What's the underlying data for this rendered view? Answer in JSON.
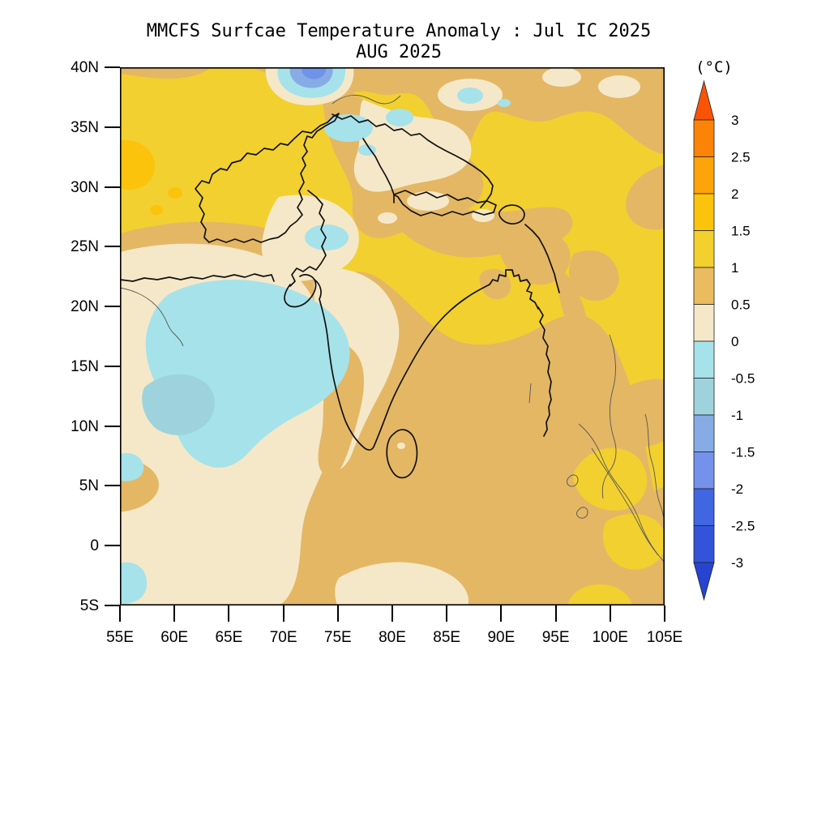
{
  "title": {
    "line1": "MMCFS Surfcae Temperature Anomaly : Jul IC 2025",
    "line2": "AUG 2025"
  },
  "axes": {
    "lat_ticks": [
      "40N",
      "35N",
      "30N",
      "25N",
      "20N",
      "15N",
      "10N",
      "5N",
      "0",
      "5S"
    ],
    "lon_ticks": [
      "55E",
      "60E",
      "65E",
      "70E",
      "75E",
      "80E",
      "85E",
      "90E",
      "95E",
      "100E",
      "105E"
    ]
  },
  "colorbar": {
    "unit_label": "(°C)",
    "levels": [
      "3",
      "2.5",
      "2",
      "1.5",
      "1",
      "0.5",
      "0",
      "-0.5",
      "-1",
      "-1.5",
      "-2",
      "-2.5",
      "-3"
    ],
    "segment_colors_top_to_bottom": [
      "#fb8406",
      "#fda40a",
      "#fcc30d",
      "#f2d02e",
      "#e8bc5f",
      "#f5e8c8",
      "#a6e2ea",
      "#9ed3dd",
      "#87ace5",
      "#7491eb",
      "#4166e2",
      "#3354da"
    ],
    "above_max_color": "#f85406",
    "below_min_color": "#2644d0"
  },
  "map_colors": {
    "band_1_to_1p5": "#f2d030",
    "band_0p5_to_1": "#e4b765",
    "band_0_to_0p5": "#f5e8c8",
    "band_m0p5_to_0": "#a6e2ea",
    "band_m1_to_m0p5": "#9ed3dd",
    "band_m1p5_to_m1": "#87ace5",
    "band_m2_to_m1p5": "#6d94e8",
    "band_1p5_to_2": "#fcc30d",
    "coastline": "#111111",
    "thin_border": "#555555"
  }
}
